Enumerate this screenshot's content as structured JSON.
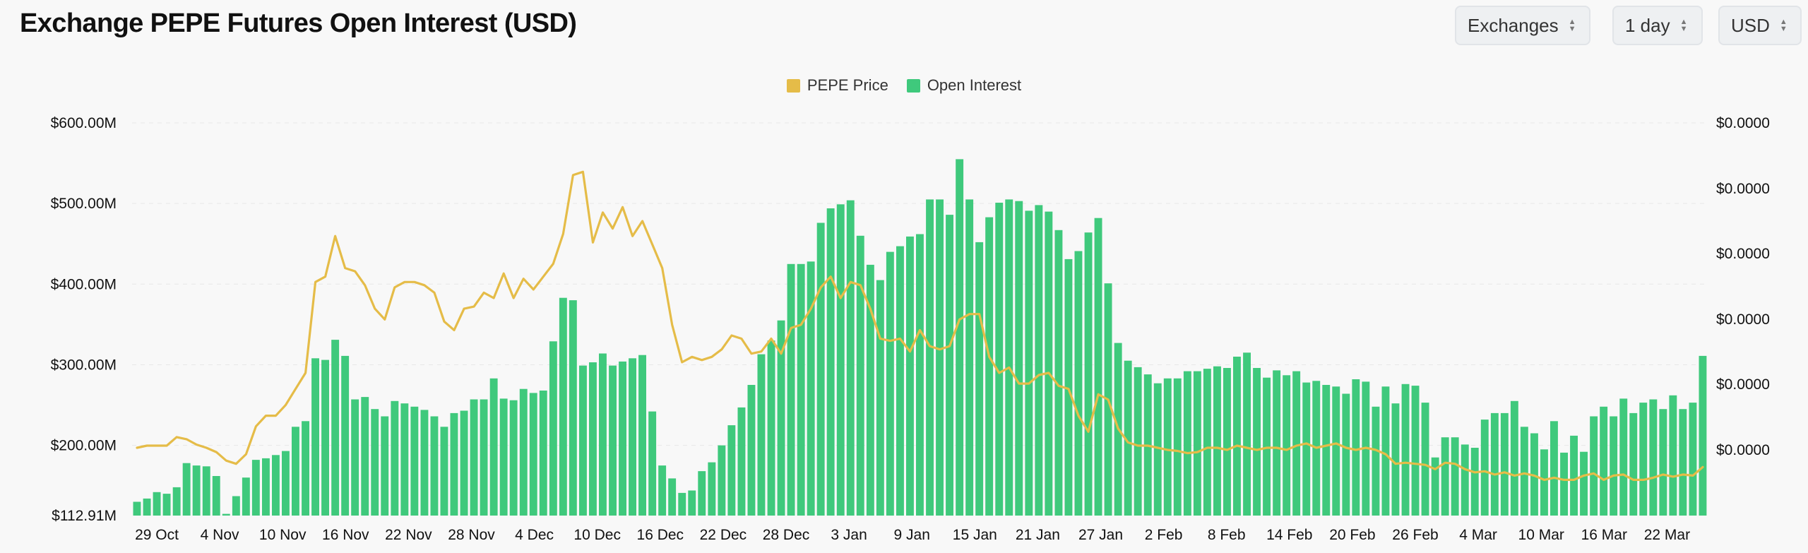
{
  "title": "Exchange PEPE Futures Open Interest (USD)",
  "controls": {
    "exchanges": "Exchanges",
    "interval": "1 day",
    "currency": "USD"
  },
  "colors": {
    "price": "#e5bc48",
    "open_interest": "#3fc97c",
    "grid": "#e7e7e7"
  },
  "chart_data": {
    "type": "bar",
    "title": "Exchange PEPE Futures Open Interest (USD)",
    "legend_position": "top-center",
    "grid": true,
    "x_tick_labels": [
      "29 Oct",
      "4 Nov",
      "10 Nov",
      "16 Nov",
      "22 Nov",
      "28 Nov",
      "4 Dec",
      "10 Dec",
      "16 Dec",
      "22 Dec",
      "28 Dec",
      "3 Jan",
      "9 Jan",
      "15 Jan",
      "21 Jan",
      "27 Jan",
      "2 Feb",
      "8 Feb",
      "14 Feb",
      "20 Feb",
      "26 Feb",
      "4 Mar",
      "10 Mar",
      "16 Mar",
      "22 Mar"
    ],
    "y_left_ticks": [
      "$600.00M",
      "$500.00M",
      "$400.00M",
      "$300.00M",
      "$200.00M",
      "$112.91M"
    ],
    "y_left_tick_values": [
      600,
      500,
      400,
      300,
      200,
      112.91
    ],
    "y_left_range": [
      112.91,
      600
    ],
    "y_left_unit": "USD millions",
    "y_right_ticks": [
      "$0.0000",
      "$0.0000",
      "$0.0000",
      "$0.0000",
      "$0.0000",
      "$0.0000"
    ],
    "series": [
      {
        "name": "Open Interest",
        "kind": "bar",
        "axis": "left",
        "values": [
          130,
          134,
          142,
          140,
          148,
          178,
          175,
          174,
          162,
          115,
          137,
          160,
          182,
          184,
          188,
          193,
          223,
          230,
          308,
          306,
          331,
          311,
          257,
          260,
          245,
          236,
          255,
          252,
          248,
          244,
          236,
          223,
          240,
          243,
          257,
          257,
          283,
          258,
          256,
          270,
          265,
          268,
          329,
          383,
          380,
          299,
          303,
          314,
          299,
          304,
          308,
          312,
          242,
          175,
          159,
          141,
          144,
          168,
          179,
          200,
          225,
          247,
          275,
          313,
          330,
          355,
          425,
          425,
          428,
          476,
          494,
          499,
          504,
          460,
          424,
          405,
          440,
          447,
          459,
          462,
          505,
          505,
          486,
          555,
          505,
          452,
          483,
          501,
          505,
          503,
          491,
          498,
          490,
          467,
          431,
          441,
          464,
          482,
          401,
          327,
          305,
          297,
          288,
          277,
          283,
          283,
          292,
          292,
          295,
          298,
          296,
          310,
          315,
          296,
          284,
          293,
          287,
          292,
          278,
          280,
          275,
          273,
          264,
          282,
          279,
          248,
          273,
          252,
          276,
          274,
          253,
          185,
          210,
          210,
          201,
          197,
          232,
          240,
          240,
          255,
          223,
          215,
          195,
          230,
          191,
          212,
          192,
          236,
          248,
          236,
          258,
          240,
          253,
          257,
          245,
          262,
          245,
          253,
          311
        ],
        "color": "#3fc97c"
      },
      {
        "name": "PEPE Price",
        "kind": "line",
        "axis": "right",
        "values": [
          2.7,
          2.72,
          2.72,
          2.72,
          2.8,
          2.78,
          2.73,
          2.7,
          2.66,
          2.58,
          2.55,
          2.64,
          2.9,
          3.0,
          3.0,
          3.1,
          3.25,
          3.4,
          4.25,
          4.3,
          4.68,
          4.38,
          4.35,
          4.22,
          4.0,
          3.9,
          4.2,
          4.25,
          4.25,
          4.22,
          4.15,
          3.88,
          3.8,
          4.0,
          4.02,
          4.15,
          4.1,
          4.33,
          4.1,
          4.28,
          4.18,
          4.3,
          4.42,
          4.7,
          5.25,
          5.28,
          4.62,
          4.9,
          4.75,
          4.95,
          4.68,
          4.82,
          4.6,
          4.38,
          3.85,
          3.5,
          3.55,
          3.52,
          3.55,
          3.62,
          3.75,
          3.72,
          3.58,
          3.6,
          3.72,
          3.58,
          3.82,
          3.85,
          4.0,
          4.2,
          4.3,
          4.1,
          4.25,
          4.22,
          4.0,
          3.72,
          3.7,
          3.72,
          3.6,
          3.8,
          3.65,
          3.62,
          3.65,
          3.9,
          3.95,
          3.95,
          3.55,
          3.4,
          3.45,
          3.3,
          3.3,
          3.38,
          3.4,
          3.28,
          3.25,
          3.0,
          2.85,
          3.2,
          3.15,
          2.88,
          2.75,
          2.72,
          2.72,
          2.7,
          2.68,
          2.67,
          2.65,
          2.66,
          2.7,
          2.7,
          2.68,
          2.72,
          2.7,
          2.68,
          2.7,
          2.7,
          2.68,
          2.72,
          2.74,
          2.7,
          2.72,
          2.74,
          2.7,
          2.68,
          2.7,
          2.68,
          2.64,
          2.55,
          2.56,
          2.55,
          2.54,
          2.5,
          2.56,
          2.55,
          2.5,
          2.47,
          2.48,
          2.45,
          2.47,
          2.44,
          2.46,
          2.44,
          2.4,
          2.42,
          2.4,
          2.4,
          2.44,
          2.46,
          2.4,
          2.44,
          2.45,
          2.4,
          2.4,
          2.42,
          2.45,
          2.43,
          2.45,
          2.44,
          2.52
        ],
        "color": "#e5bc48"
      }
    ]
  }
}
